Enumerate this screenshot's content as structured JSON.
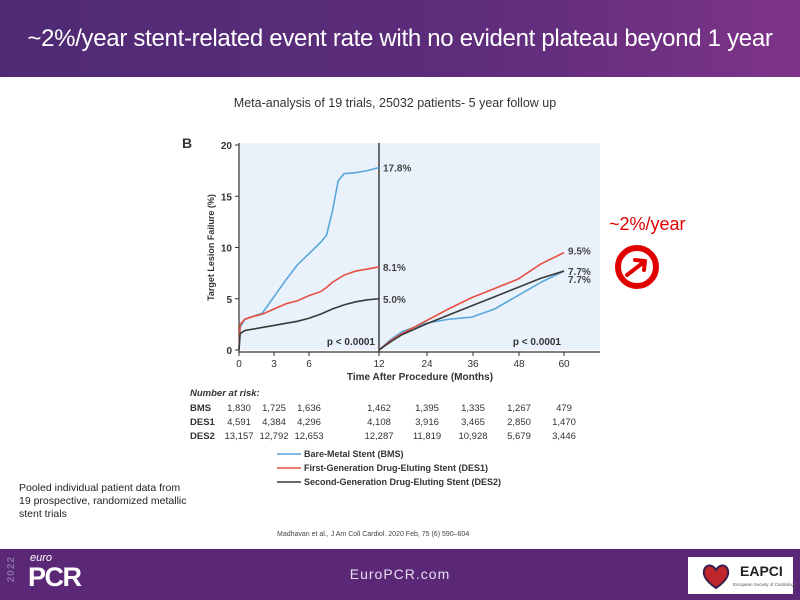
{
  "header": {
    "title": "~2%/year stent-related event rate with no evident plateau beyond 1 year"
  },
  "subtitle": "Meta-analysis  of 19 trials, 25032 patients- 5 year follow up",
  "callout": {
    "text": "~2%/year",
    "icon": "trend-up-arrow-circle-icon",
    "color": "#e10000"
  },
  "note": "Pooled individual patient data from 19 prospective, randomized metallic stent trials",
  "citation": "Madhavan et al., J Am Coll Cardiol. 2020 Feb, 75 (6) 590–604",
  "footer": {
    "url": "EuroPCR.com",
    "logo_year": "2022",
    "logo_euro": "euro",
    "logo_pcr": "PCR",
    "partner_logo": "EAPCI",
    "partner_sub": "European Society of Cardiology"
  },
  "chart_data": {
    "type": "line",
    "panel_label": "B",
    "title": "",
    "xlabel": "Time After Procedure (Months)",
    "ylabel": "Target Lesion Failure (%)",
    "ylim": [
      0,
      20
    ],
    "yticks": [
      "0",
      "5",
      "10",
      "15",
      "20"
    ],
    "xticks": [
      "0",
      "3",
      "6",
      "12",
      "24",
      "36",
      "48",
      "60"
    ],
    "landmark_split_month": 12,
    "p_values": [
      "p < 0.0001",
      "p < 0.0001"
    ],
    "colors": {
      "BMS": "#5aa7dc",
      "DES1": "#e8503f",
      "DES2": "#3a3a3a"
    },
    "background": "#e9f2fb",
    "series": [
      {
        "key": "BMS",
        "name": "Bare-Metal Stent (BMS)",
        "segment1": {
          "x": [
            0,
            0.1,
            0.5,
            1,
            1.5,
            2,
            3,
            4,
            5,
            6,
            7,
            7.5,
            8,
            8.5,
            9,
            10,
            11,
            12
          ],
          "y": [
            0,
            2.2,
            3.0,
            3.2,
            3.4,
            3.6,
            5.2,
            6.8,
            8.3,
            9.4,
            10.5,
            11.2,
            13.5,
            16.5,
            17.2,
            17.3,
            17.5,
            17.8
          ]
        },
        "segment2": {
          "x": [
            12,
            15,
            18,
            24,
            30,
            36,
            42,
            48,
            54,
            60
          ],
          "y": [
            0,
            1.0,
            1.8,
            2.6,
            3.0,
            3.2,
            4.0,
            5.3,
            6.6,
            7.7
          ]
        },
        "end_label_1": "17.8%",
        "end_label_2": "7.7%"
      },
      {
        "key": "DES1",
        "name": "First-Generation Drug-Eluting Stent (DES1)",
        "segment1": {
          "x": [
            0,
            0.1,
            0.5,
            1,
            2,
            3,
            4,
            5,
            6,
            7,
            7.5,
            8,
            9,
            10,
            11,
            12
          ],
          "y": [
            0,
            2.5,
            3.0,
            3.2,
            3.5,
            4.0,
            4.5,
            4.8,
            5.3,
            5.7,
            6.1,
            6.6,
            7.3,
            7.7,
            7.9,
            8.1
          ]
        },
        "segment2": {
          "x": [
            12,
            15,
            18,
            24,
            30,
            36,
            42,
            48,
            54,
            60
          ],
          "y": [
            0,
            0.9,
            1.6,
            2.8,
            4.0,
            5.1,
            6.0,
            6.9,
            8.4,
            9.5
          ]
        },
        "end_label_1": "8.1%",
        "end_label_2": "9.5%"
      },
      {
        "key": "DES2",
        "name": "Second-Generation Drug-Eluting Stent (DES2)",
        "segment1": {
          "x": [
            0,
            0.1,
            0.5,
            1,
            2,
            3,
            4,
            5,
            6,
            7,
            8,
            9,
            10,
            11,
            12
          ],
          "y": [
            0,
            1.6,
            1.9,
            2.0,
            2.2,
            2.4,
            2.6,
            2.8,
            3.1,
            3.5,
            4.0,
            4.4,
            4.7,
            4.9,
            5.0
          ]
        },
        "segment2": {
          "x": [
            12,
            15,
            18,
            24,
            30,
            36,
            42,
            48,
            54,
            60
          ],
          "y": [
            0,
            0.8,
            1.5,
            2.5,
            3.4,
            4.3,
            5.2,
            6.1,
            7.0,
            7.7
          ]
        },
        "end_label_1": "5.0%",
        "end_label_2": "7.7%"
      }
    ],
    "risk_table": {
      "title": "Number at risk:",
      "rows": [
        {
          "label": "BMS",
          "values": [
            "1,830",
            "1,725",
            "1,636",
            "1,462",
            "1,395",
            "1,335",
            "1,267",
            "479"
          ]
        },
        {
          "label": "DES1",
          "values": [
            "4,591",
            "4,384",
            "4,296",
            "4,108",
            "3,916",
            "3,465",
            "2,850",
            "1,470"
          ]
        },
        {
          "label": "DES2",
          "values": [
            "13,157",
            "12,792",
            "12,653",
            "12,287",
            "11,819",
            "10,928",
            "5,679",
            "3,446"
          ]
        }
      ]
    },
    "legend": {
      "position": "bottom",
      "entries": [
        "Bare-Metal Stent (BMS)",
        "First-Generation Drug-Eluting Stent (DES1)",
        "Second-Generation Drug-Eluting Stent (DES2)"
      ]
    }
  }
}
